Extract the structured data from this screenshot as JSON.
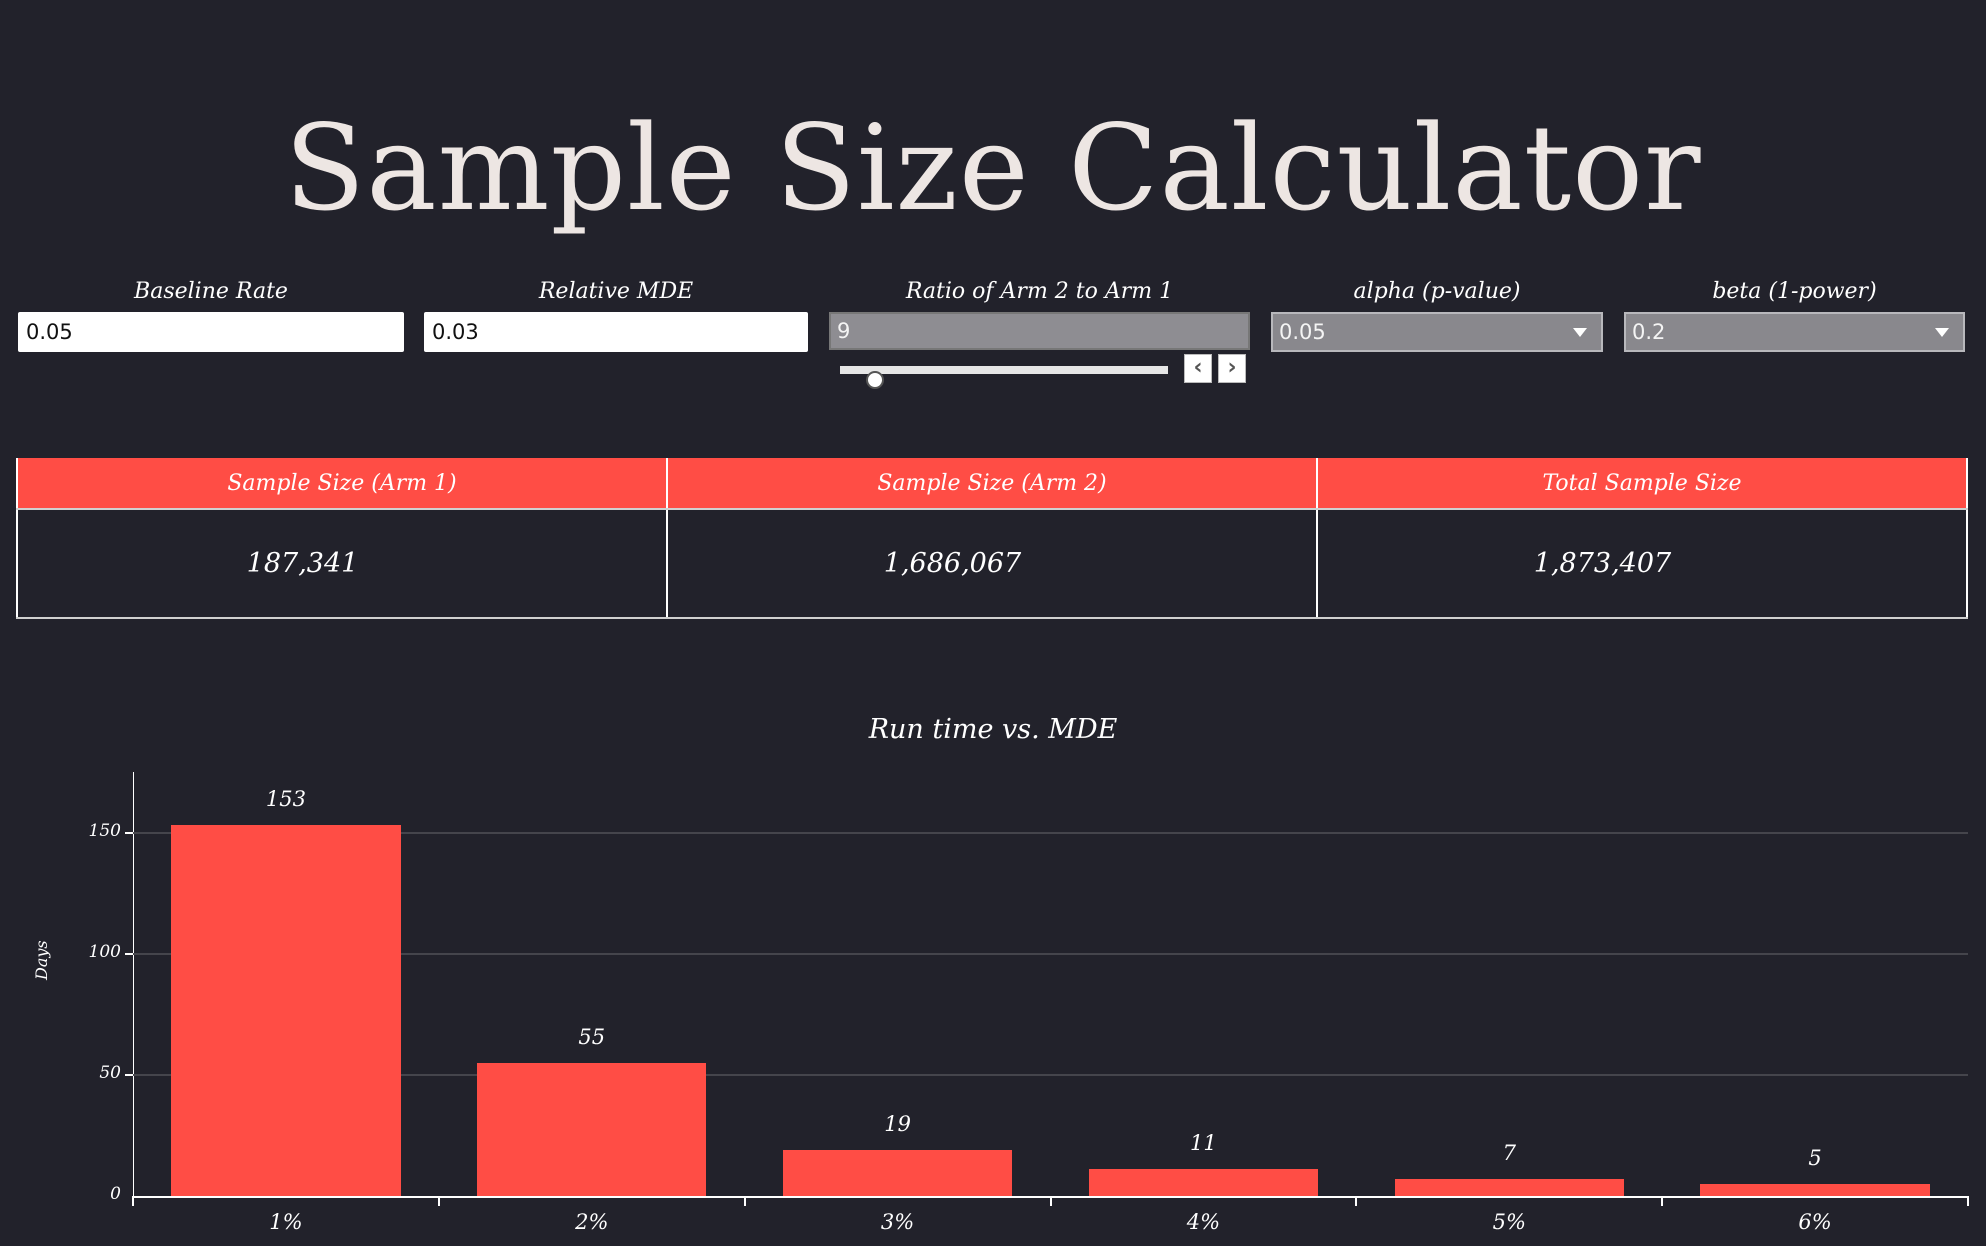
{
  "header": {
    "title": "Sample Size Calculator"
  },
  "inputs": {
    "baseline_rate": {
      "label": "Baseline Rate",
      "value": "0.05"
    },
    "relative_mde": {
      "label": "Relative MDE",
      "value": "0.03"
    },
    "ratio": {
      "label": "Ratio of Arm 2 to Arm 1",
      "value": "9",
      "slider_position_pct": 5,
      "prev_icon": "‹",
      "next_icon": "›"
    },
    "alpha": {
      "label": "alpha (p-value)",
      "selected": "0.05"
    },
    "beta": {
      "label": "beta (1-power)",
      "selected": "0.2"
    }
  },
  "results": {
    "columns": [
      "Sample Size (Arm 1)",
      "Sample Size (Arm 2)",
      "Total Sample Size"
    ],
    "values": [
      "187,341",
      "1,686,067",
      "1,873,407"
    ]
  },
  "colors": {
    "background": "#22222b",
    "accent": "#ff4d45",
    "title": "#ede6e3"
  },
  "chart_data": {
    "type": "bar",
    "title": "Run time vs. MDE",
    "xlabel": "",
    "ylabel": "Days",
    "categories": [
      "1%",
      "2%",
      "3%",
      "4%",
      "5%",
      "6%"
    ],
    "values": [
      153,
      55,
      19,
      11,
      7,
      5
    ],
    "data_labels": [
      "153",
      "55",
      "19",
      "11",
      "7",
      "5"
    ],
    "yticks": [
      0,
      50,
      100,
      150
    ],
    "ytick_labels": [
      "0",
      "50",
      "100",
      "150"
    ],
    "ylim": [
      0,
      175
    ],
    "grid": true,
    "legend": null,
    "bar_color": "#ff4d45"
  }
}
